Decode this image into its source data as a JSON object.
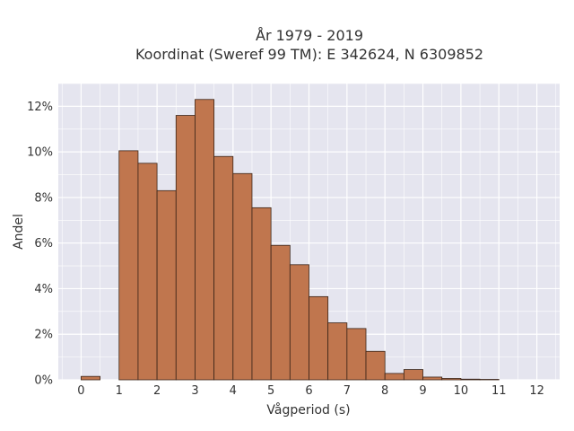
{
  "chart_data": {
    "type": "bar",
    "title_line1": "År 1979 - 2019",
    "title_line2": "Koordinat (Sweref 99 TM): E 342624, N 6309852",
    "xlabel": "Vågperiod (s)",
    "ylabel": "Andel",
    "xlim": [
      -0.6,
      12.6
    ],
    "ylim": [
      0,
      13
    ],
    "x_ticks": [
      0,
      1,
      2,
      3,
      4,
      5,
      6,
      7,
      8,
      9,
      10,
      11,
      12
    ],
    "x_tick_labels": [
      "0",
      "1",
      "2",
      "3",
      "4",
      "5",
      "6",
      "7",
      "8",
      "9",
      "10",
      "11",
      "12"
    ],
    "y_ticks": [
      0,
      2,
      4,
      6,
      8,
      10,
      12
    ],
    "y_tick_labels": [
      "0%",
      "2%",
      "4%",
      "6%",
      "8%",
      "10%",
      "12%"
    ],
    "grid": true,
    "bar_color": "#c0764e",
    "bar_edge_color": "#3a2418",
    "plot_background": "#e5e5ef",
    "bins": [
      {
        "x0": 0.0,
        "x1": 0.5,
        "value": 0.15
      },
      {
        "x0": 1.0,
        "x1": 1.5,
        "value": 10.05
      },
      {
        "x0": 1.5,
        "x1": 2.0,
        "value": 9.5
      },
      {
        "x0": 2.0,
        "x1": 2.5,
        "value": 8.3
      },
      {
        "x0": 2.5,
        "x1": 3.0,
        "value": 11.6
      },
      {
        "x0": 3.0,
        "x1": 3.5,
        "value": 12.3
      },
      {
        "x0": 3.5,
        "x1": 4.0,
        "value": 9.8
      },
      {
        "x0": 4.0,
        "x1": 4.5,
        "value": 9.05
      },
      {
        "x0": 4.5,
        "x1": 5.0,
        "value": 7.55
      },
      {
        "x0": 5.0,
        "x1": 5.5,
        "value": 5.9
      },
      {
        "x0": 5.5,
        "x1": 6.0,
        "value": 5.05
      },
      {
        "x0": 6.0,
        "x1": 6.5,
        "value": 3.65
      },
      {
        "x0": 6.5,
        "x1": 7.0,
        "value": 2.5
      },
      {
        "x0": 7.0,
        "x1": 7.5,
        "value": 2.25
      },
      {
        "x0": 7.5,
        "x1": 8.0,
        "value": 1.25
      },
      {
        "x0": 8.0,
        "x1": 8.5,
        "value": 0.28
      },
      {
        "x0": 8.5,
        "x1": 9.0,
        "value": 0.45
      },
      {
        "x0": 9.0,
        "x1": 9.5,
        "value": 0.12
      },
      {
        "x0": 9.5,
        "x1": 10.0,
        "value": 0.06
      },
      {
        "x0": 10.0,
        "x1": 10.5,
        "value": 0.03
      },
      {
        "x0": 10.5,
        "x1": 11.0,
        "value": 0.02
      }
    ]
  }
}
